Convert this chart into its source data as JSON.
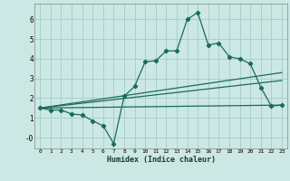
{
  "xlabel": "Humidex (Indice chaleur)",
  "bg_color": "#cce8e4",
  "grid_color": "#aacfcb",
  "line_color": "#1a6b5a",
  "xlim": [
    -0.5,
    23.5
  ],
  "ylim": [
    -0.55,
    6.8
  ],
  "xticks": [
    0,
    1,
    2,
    3,
    4,
    5,
    6,
    7,
    8,
    9,
    10,
    11,
    12,
    13,
    14,
    15,
    16,
    17,
    18,
    19,
    20,
    21,
    22,
    23
  ],
  "yticks": [
    0,
    1,
    2,
    3,
    4,
    5,
    6
  ],
  "ytick_labels": [
    "-0",
    "1",
    "2",
    "3",
    "4",
    "5",
    "6"
  ],
  "line1_x": [
    0,
    1,
    2,
    3,
    4,
    5,
    6,
    7,
    8,
    9,
    10,
    11,
    12,
    13,
    14,
    15,
    16,
    17,
    18,
    19,
    20,
    21,
    22,
    23
  ],
  "line1_y": [
    1.5,
    1.4,
    1.4,
    1.2,
    1.15,
    0.85,
    0.6,
    -0.3,
    2.1,
    2.6,
    3.85,
    3.9,
    4.4,
    4.4,
    6.0,
    6.35,
    4.7,
    4.8,
    4.1,
    4.0,
    3.75,
    2.55,
    1.6,
    1.65
  ],
  "line2_x": [
    0,
    23
  ],
  "line2_y": [
    1.5,
    3.3
  ],
  "line3_x": [
    0,
    23
  ],
  "line3_y": [
    1.5,
    2.9
  ],
  "line4_x": [
    0,
    23
  ],
  "line4_y": [
    1.5,
    1.65
  ]
}
